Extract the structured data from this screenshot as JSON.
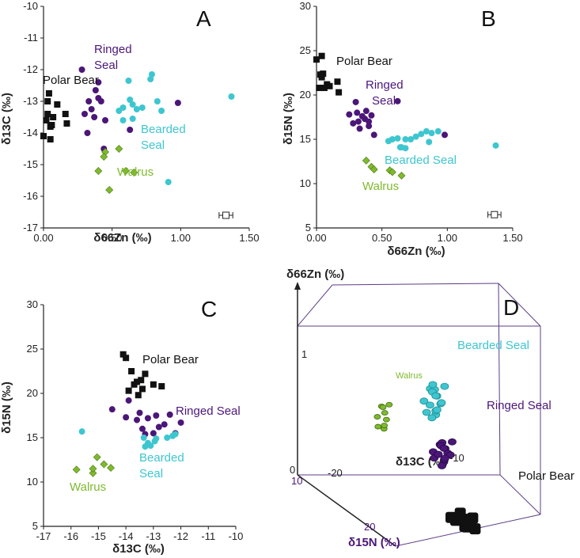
{
  "colors": {
    "polar_bear": "#111111",
    "ringed_seal": "#4b1678",
    "bearded_seal": "#3ec6d0",
    "walrus": "#7fba2e",
    "axis": "#222222"
  },
  "chart_data": [
    {
      "panel": "A",
      "type": "scatter",
      "xlabel": "δ66Zn (‰)",
      "ylabel": "δ13C (‰)",
      "xlim": [
        0,
        1.5
      ],
      "ylim": [
        -17,
        -10
      ],
      "xticks": [
        "0.00",
        "0.50",
        "1.00",
        "1.50"
      ],
      "xtick_values": [
        0,
        0.5,
        1.0,
        1.5
      ],
      "yticks": [
        "-10",
        "-11",
        "-12",
        "-13",
        "-14",
        "-15",
        "-16",
        "-17"
      ],
      "ytick_values": [
        -10,
        -11,
        -12,
        -13,
        -14,
        -15,
        -16,
        -17
      ],
      "series": [
        {
          "name": "Polar Bear",
          "label": "Polar Bear",
          "marker": "square",
          "x": [
            0.0,
            0.03,
            0.05,
            0.07,
            0.02,
            0.1,
            0.16,
            0.17,
            0.04,
            0.06,
            0.05,
            0.03
          ],
          "y": [
            -14.1,
            -13.4,
            -13.8,
            -13.5,
            -13.6,
            -13.1,
            -13.4,
            -13.7,
            -12.75,
            -13.75,
            -14.2,
            -13.0
          ]
        },
        {
          "name": "Ringed Seal",
          "label": "Ringed Seal",
          "marker": "circle",
          "x": [
            0.28,
            0.33,
            0.35,
            0.38,
            0.42,
            0.4,
            0.3,
            0.45,
            0.37,
            0.4,
            0.32,
            0.63,
            0.98,
            0.44
          ],
          "y": [
            -12.0,
            -13.0,
            -13.25,
            -12.65,
            -13.0,
            -12.4,
            -13.4,
            -13.6,
            -13.5,
            -12.9,
            -14.0,
            -13.9,
            -13.05,
            -14.5
          ]
        },
        {
          "name": "Bearded Seal",
          "label": "Bearded Seal",
          "marker": "circle",
          "x": [
            0.55,
            0.58,
            0.62,
            0.65,
            0.68,
            0.72,
            0.78,
            0.79,
            0.83,
            0.86,
            0.58,
            0.65,
            0.91,
            1.37,
            0.63
          ],
          "y": [
            -13.3,
            -13.2,
            -12.35,
            -13.1,
            -13.25,
            -13.2,
            -12.3,
            -12.15,
            -13.0,
            -13.3,
            -13.6,
            -13.55,
            -15.55,
            -12.85,
            -12.95
          ]
        },
        {
          "name": "Walrus",
          "label": "Walrus",
          "marker": "diamond",
          "x": [
            0.4,
            0.45,
            0.55,
            0.6,
            0.66,
            0.48,
            0.44
          ],
          "y": [
            -15.2,
            -14.6,
            -14.5,
            -15.2,
            -15.25,
            -15.8,
            -14.75
          ]
        }
      ],
      "error_bar": {
        "x": 1.33,
        "y": -16.6,
        "xerr": 0.05
      }
    },
    {
      "panel": "B",
      "type": "scatter",
      "xlabel": "δ66Zn (‰)",
      "ylabel": "δ15N (‰)",
      "xlim": [
        0,
        1.5
      ],
      "ylim": [
        5,
        30
      ],
      "xticks": [
        "0.00",
        "0.50",
        "1.00",
        "1.50"
      ],
      "xtick_values": [
        0,
        0.5,
        1.0,
        1.5
      ],
      "yticks": [
        "30",
        "25",
        "20",
        "15",
        "10",
        "5"
      ],
      "ytick_values": [
        30,
        25,
        20,
        15,
        10,
        5
      ],
      "series": [
        {
          "name": "Polar Bear",
          "label": "Polar Bear",
          "marker": "square",
          "x": [
            0.0,
            0.04,
            0.05,
            0.04,
            0.02,
            0.08,
            0.1,
            0.16,
            0.17,
            0.06,
            0.03
          ],
          "y": [
            24.0,
            24.4,
            22.4,
            22.0,
            20.8,
            21.2,
            21.0,
            21.5,
            20.3,
            20.8,
            22.3
          ]
        },
        {
          "name": "Ringed Seal",
          "label": "Ringed Seal",
          "marker": "circle",
          "x": [
            0.25,
            0.3,
            0.32,
            0.35,
            0.38,
            0.4,
            0.42,
            0.28,
            0.33,
            0.37,
            0.4,
            0.62,
            0.98,
            0.44,
            0.31
          ],
          "y": [
            17.8,
            19.2,
            17.0,
            17.6,
            18.2,
            16.5,
            17.7,
            16.8,
            16.2,
            17.3,
            17.0,
            19.3,
            15.5,
            15.5,
            18.0
          ]
        },
        {
          "name": "Bearded Seal",
          "label": "Bearded Seal",
          "marker": "circle",
          "x": [
            0.55,
            0.58,
            0.62,
            0.65,
            0.68,
            0.72,
            0.76,
            0.8,
            0.84,
            0.88,
            0.93,
            0.64,
            0.68,
            0.86,
            1.37
          ],
          "y": [
            14.8,
            15.0,
            15.1,
            14.1,
            15.0,
            15.0,
            15.3,
            15.6,
            15.9,
            15.7,
            15.9,
            14.1,
            14.0,
            14.7,
            14.3
          ]
        },
        {
          "name": "Walrus",
          "label": "Walrus",
          "marker": "diamond",
          "x": [
            0.38,
            0.42,
            0.44,
            0.56,
            0.58,
            0.65
          ],
          "y": [
            12.6,
            11.9,
            11.6,
            11.5,
            11.3,
            10.9
          ]
        }
      ],
      "error_bar": {
        "x": 1.36,
        "y": 6.5,
        "xerr": 0.05
      }
    },
    {
      "panel": "C",
      "type": "scatter",
      "xlabel": "δ13C (‰)",
      "ylabel": "δ15N (‰)",
      "xlim": [
        -17,
        -10
      ],
      "ylim": [
        5,
        30
      ],
      "xticks": [
        "-17",
        "-16",
        "-15",
        "-14",
        "-13",
        "-12",
        "-11",
        "-10"
      ],
      "xtick_values": [
        -17,
        -16,
        -15,
        -14,
        -13,
        -12,
        -11,
        -10
      ],
      "yticks": [
        "30",
        "25",
        "20",
        "15",
        "10",
        "5"
      ],
      "ytick_values": [
        30,
        25,
        20,
        15,
        10,
        5
      ],
      "series": [
        {
          "name": "Polar Bear",
          "label": "Polar Bear",
          "marker": "square",
          "x": [
            -14.1,
            -14.0,
            -13.8,
            -13.6,
            -13.45,
            -13.3,
            -13.7,
            -13.4,
            -13.0,
            -12.7,
            -13.55,
            -13.9
          ],
          "y": [
            24.4,
            24.0,
            22.5,
            21.3,
            21.5,
            22.2,
            21.0,
            20.5,
            21.0,
            20.8,
            19.8,
            20.3
          ]
        },
        {
          "name": "Ringed Seal",
          "label": "Ringed Seal",
          "marker": "circle",
          "x": [
            -14.5,
            -14.0,
            -13.9,
            -13.6,
            -13.2,
            -12.9,
            -12.6,
            -12.4,
            -12.0,
            -13.0,
            -13.3,
            -13.5,
            -12.8,
            -13.4,
            -12.2
          ],
          "y": [
            18.2,
            17.3,
            19.2,
            17.0,
            17.2,
            17.5,
            16.5,
            17.6,
            16.7,
            15.5,
            15.4,
            17.8,
            16.2,
            16.0,
            15.5
          ]
        },
        {
          "name": "Bearded Seal",
          "label": "Bearded Seal",
          "marker": "circle",
          "x": [
            -15.6,
            -13.35,
            -13.2,
            -13.3,
            -13.1,
            -12.9,
            -12.5,
            -12.3,
            -12.2,
            -12.95
          ],
          "y": [
            15.7,
            15.0,
            14.4,
            14.0,
            14.1,
            14.9,
            15.0,
            15.2,
            15.4,
            14.6
          ]
        },
        {
          "name": "Walrus",
          "label": "Walrus",
          "marker": "diamond",
          "x": [
            -15.8,
            -15.2,
            -15.2,
            -15.05,
            -14.8,
            -14.55
          ],
          "y": [
            11.4,
            11.0,
            11.5,
            12.8,
            12.0,
            11.6
          ]
        }
      ]
    },
    {
      "panel": "D",
      "type": "scatter3d",
      "xlabel": "δ13C (‰)",
      "ylabel": "δ15N (‰)",
      "zlabel": "δ66Zn (‰)",
      "z_ticks": [
        "0",
        "1"
      ],
      "x_ticks": [
        "-20",
        "-10"
      ],
      "y_ticks": [
        "10",
        "20"
      ],
      "clusters": [
        {
          "name": "Walrus",
          "label": "Walrus",
          "center": [
            -15.1,
            11.6,
            0.52
          ]
        },
        {
          "name": "Bearded Seal",
          "label": "Bearded Seal",
          "center": [
            -13.0,
            14.9,
            0.78
          ]
        },
        {
          "name": "Ringed Seal",
          "label": "Ringed Seal",
          "center": [
            -13.3,
            17.2,
            0.45
          ]
        },
        {
          "name": "Polar Bear",
          "label": "Polar Bear",
          "center": [
            -13.5,
            21.5,
            0.05
          ]
        }
      ]
    }
  ]
}
